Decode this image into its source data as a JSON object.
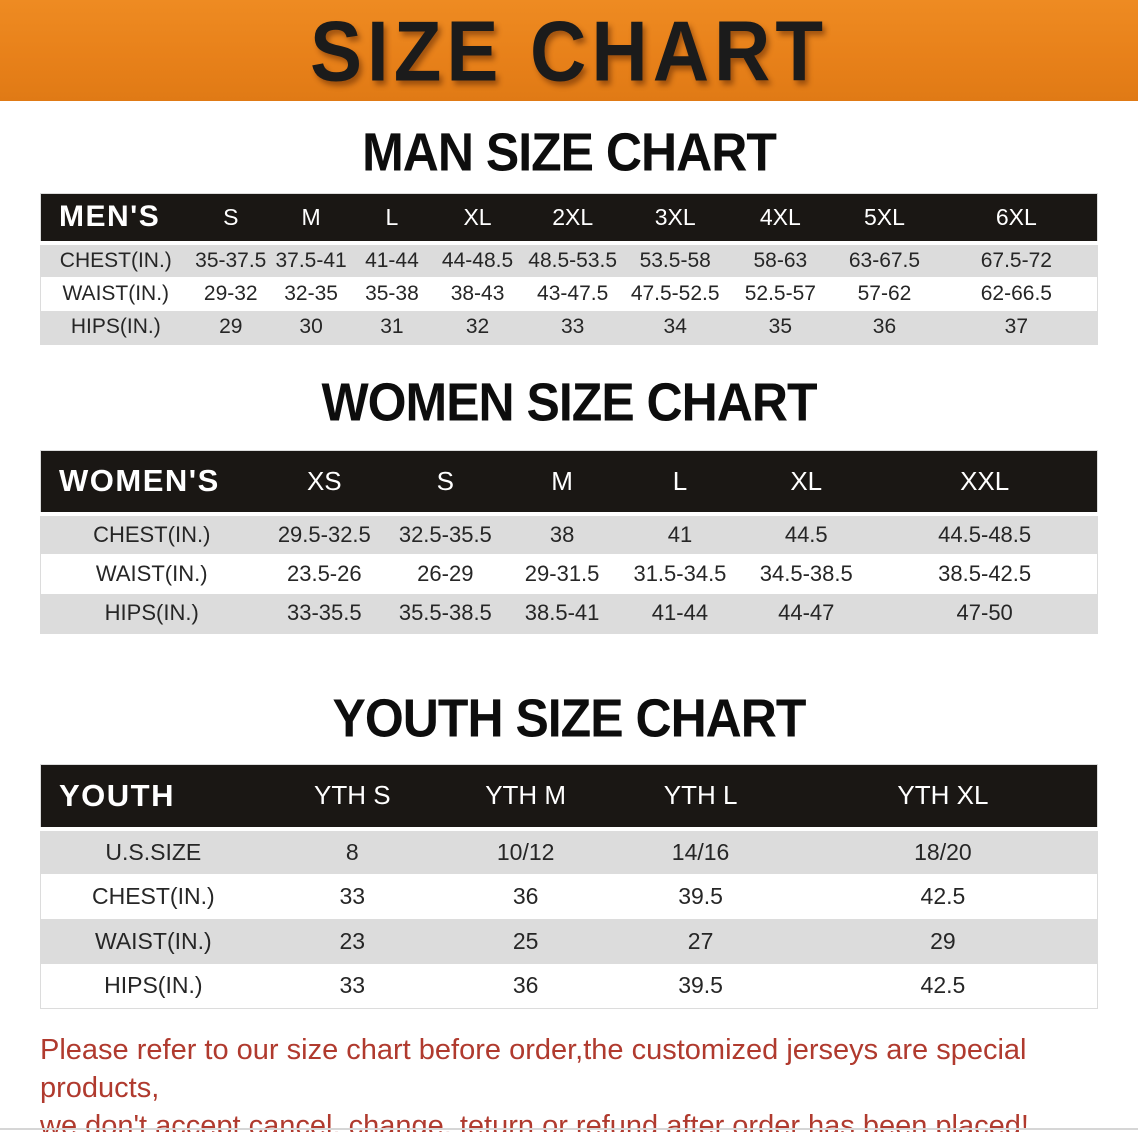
{
  "banner": {
    "title": "SIZE CHART"
  },
  "colors": {
    "page_bg": "#ffffff",
    "banner_bg": "#e8811a",
    "banner_text": "#1b1b1b",
    "heading_text": "#0d0d0d",
    "header_bar_bg": "#1a1714",
    "header_text": "#ffffff",
    "row_shaded": "#dcdcdc",
    "row_plain": "#ffffff",
    "body_text": "#262626",
    "notice_text": "#b03a2e"
  },
  "sections": [
    {
      "id": "men",
      "heading": "MAN SIZE CHART",
      "table": {
        "header_label": "MEN'S",
        "columns": [
          "S",
          "M",
          "L",
          "XL",
          "2XL",
          "3XL",
          "4XL",
          "5XL",
          "6XL"
        ],
        "rows": [
          {
            "label": "CHEST(IN.)",
            "values": [
              "35-37.5",
              "37.5-41",
              "41-44",
              "44-48.5",
              "48.5-53.5",
              "53.5-58",
              "58-63",
              "63-67.5",
              "67.5-72"
            ]
          },
          {
            "label": "WAIST(IN.)",
            "values": [
              "29-32",
              "32-35",
              "35-38",
              "38-43",
              "43-47.5",
              "47.5-52.5",
              "52.5-57",
              "57-62",
              "62-66.5"
            ]
          },
          {
            "label": "HIPS(IN.)",
            "values": [
              "29",
              "30",
              "31",
              "32",
              "33",
              "34",
              "35",
              "36",
              "37"
            ]
          }
        ]
      }
    },
    {
      "id": "women",
      "heading": "WOMEN SIZE CHART",
      "table": {
        "header_label": "WOMEN'S",
        "columns": [
          "XS",
          "S",
          "M",
          "L",
          "XL",
          "XXL"
        ],
        "rows": [
          {
            "label": "CHEST(IN.)",
            "values": [
              "29.5-32.5",
              "32.5-35.5",
              "38",
              "41",
              "44.5",
              "44.5-48.5"
            ]
          },
          {
            "label": "WAIST(IN.)",
            "values": [
              "23.5-26",
              "26-29",
              "29-31.5",
              "31.5-34.5",
              "34.5-38.5",
              "38.5-42.5"
            ]
          },
          {
            "label": "HIPS(IN.)",
            "values": [
              "33-35.5",
              "35.5-38.5",
              "38.5-41",
              "41-44",
              "44-47",
              "47-50"
            ]
          }
        ]
      }
    },
    {
      "id": "youth",
      "heading": "YOUTH SIZE CHART",
      "table": {
        "header_label": "YOUTH",
        "columns": [
          "YTH S",
          "YTH M",
          "YTH L",
          "YTH XL"
        ],
        "rows": [
          {
            "label": "U.S.SIZE",
            "values": [
              "8",
              "10/12",
              "14/16",
              "18/20"
            ]
          },
          {
            "label": "CHEST(IN.)",
            "values": [
              "33",
              "36",
              "39.5",
              "42.5"
            ]
          },
          {
            "label": "WAIST(IN.)",
            "values": [
              "23",
              "25",
              "27",
              "29"
            ]
          },
          {
            "label": "HIPS(IN.)",
            "values": [
              "33",
              "36",
              "39.5",
              "42.5"
            ]
          }
        ]
      }
    }
  ],
  "footer": {
    "line1": "Please refer to our size chart before order,the customized jerseys are special products,",
    "line2": "we don't accept cancel, change, teturn or refund after order has been placed!"
  }
}
